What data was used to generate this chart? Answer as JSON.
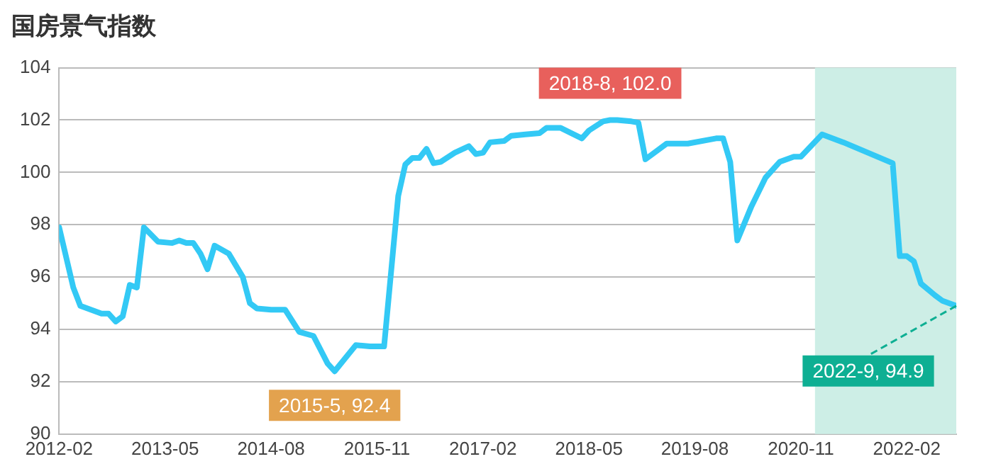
{
  "chart_data": {
    "type": "line",
    "title": "国房景气指数",
    "x": [
      "2012-02",
      "2012-04",
      "2012-05",
      "2012-08",
      "2012-09",
      "2012-10",
      "2012-11",
      "2012-12",
      "2013-01",
      "2013-02",
      "2013-04",
      "2013-06",
      "2013-07",
      "2013-08",
      "2013-09",
      "2013-10",
      "2013-11",
      "2013-12",
      "2014-02",
      "2014-04",
      "2014-05",
      "2014-06",
      "2014-08",
      "2014-10",
      "2014-12",
      "2015-02",
      "2015-04",
      "2015-05",
      "2015-08",
      "2015-10",
      "2015-12",
      "2016-02",
      "2016-03",
      "2016-04",
      "2016-05",
      "2016-06",
      "2016-07",
      "2016-08",
      "2016-10",
      "2016-12",
      "2017-01",
      "2017-02",
      "2017-03",
      "2017-05",
      "2017-06",
      "2017-08",
      "2017-10",
      "2017-11",
      "2018-01",
      "2018-04",
      "2018-05",
      "2018-07",
      "2018-08",
      "2018-09",
      "2018-11",
      "2018-12",
      "2019-01",
      "2019-04",
      "2019-07",
      "2019-11",
      "2019-12",
      "2020-01",
      "2020-02",
      "2020-04",
      "2020-06",
      "2020-08",
      "2020-10",
      "2020-11",
      "2021-02",
      "2021-05",
      "2021-12",
      "2022-01",
      "2022-02",
      "2022-03",
      "2022-04",
      "2022-06",
      "2022-07",
      "2022-09"
    ],
    "series": [
      {
        "color": "#33c9f5",
        "values": [
          97.9,
          95.6,
          94.9,
          94.6,
          94.6,
          94.3,
          94.5,
          95.7,
          95.6,
          97.9,
          97.35,
          97.3,
          97.4,
          97.3,
          97.3,
          96.9,
          96.3,
          97.2,
          96.9,
          96.0,
          95.0,
          94.8,
          94.75,
          94.75,
          93.9,
          93.75,
          92.7,
          92.4,
          93.4,
          93.35,
          93.35,
          99.1,
          100.3,
          100.55,
          100.55,
          100.9,
          100.35,
          100.4,
          100.75,
          101.0,
          100.7,
          100.75,
          101.15,
          101.2,
          101.4,
          101.45,
          101.5,
          101.7,
          101.7,
          101.3,
          101.6,
          101.95,
          102.0,
          102.0,
          101.95,
          101.9,
          100.5,
          101.1,
          101.1,
          101.3,
          101.3,
          100.4,
          97.4,
          98.7,
          99.8,
          100.4,
          100.6,
          100.6,
          101.45,
          101.15,
          100.35,
          96.8,
          96.8,
          96.6,
          95.75,
          95.3,
          95.1,
          94.9
        ]
      }
    ],
    "xlim": [
      "2012-02",
      "2022-09"
    ],
    "xticks": [
      "2012-02",
      "2013-05",
      "2014-08",
      "2015-11",
      "2017-02",
      "2018-05",
      "2019-08",
      "2020-11",
      "2022-02"
    ],
    "ylim": [
      90,
      104
    ],
    "yticks": [
      90,
      92,
      94,
      96,
      98,
      100,
      102,
      104
    ],
    "grid": "y",
    "legend": false,
    "marker": "none",
    "line_style": "solid",
    "bands": [
      {
        "axis": "x",
        "from": "2021-01",
        "to": "2022-09",
        "color": "#cdeee6"
      }
    ],
    "annotations": [
      {
        "text": "2015-5, 92.4",
        "x": "2015-05",
        "y": 92.4
      },
      {
        "text": "2018-8, 102.0",
        "x": "2018-08",
        "y": 102.0
      },
      {
        "text": "2022-9, 94.9",
        "x": "2022-09",
        "y": 94.9
      }
    ]
  }
}
